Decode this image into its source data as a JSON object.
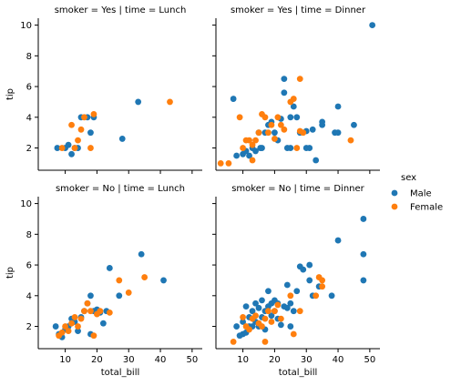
{
  "legend": {
    "title": "sex",
    "series": [
      {
        "name": "Male",
        "color": "#1f77b4"
      },
      {
        "name": "Female",
        "color": "#ff7f0e"
      }
    ]
  },
  "chart_data": [
    {
      "type": "scatter",
      "title": "smoker = Yes | time = Lunch",
      "ylabel": "tip",
      "xlim": [
        1.5,
        53.2
      ],
      "ylim": [
        0.55,
        10.45
      ],
      "xticks": [
        10,
        20,
        30,
        40,
        50
      ],
      "yticks": [
        2,
        4,
        6,
        8,
        10
      ],
      "series": [
        {
          "x": [
            7.5,
            10,
            11,
            12,
            13,
            14,
            15,
            17,
            18,
            19,
            28,
            33
          ],
          "y": [
            2,
            2,
            2.2,
            1.6,
            2,
            2,
            4,
            4,
            3,
            4,
            2.6,
            5
          ]
        },
        {
          "x": [
            9,
            12,
            13,
            14,
            15,
            16,
            18,
            19,
            43
          ],
          "y": [
            2,
            3.5,
            2,
            2.5,
            3.2,
            4,
            2,
            4.2,
            5
          ]
        }
      ]
    },
    {
      "type": "scatter",
      "title": "smoker = Yes | time = Dinner",
      "xlim": [
        1.5,
        53.2
      ],
      "ylim": [
        0.55,
        10.45
      ],
      "xticks": [
        10,
        20,
        30,
        40,
        50
      ],
      "yticks": [
        2,
        4,
        6,
        8,
        10
      ],
      "series": [
        {
          "x": [
            7,
            8,
            10,
            11,
            12,
            13,
            14,
            15,
            15.5,
            16,
            17,
            18,
            19,
            20,
            21,
            22,
            23,
            23,
            24,
            25,
            25,
            26,
            27,
            28,
            30,
            30,
            31,
            32,
            33,
            35,
            35,
            39,
            40,
            40,
            45,
            50.8
          ],
          "y": [
            5.2,
            1.5,
            1.6,
            1.8,
            1.5,
            2,
            1.8,
            3,
            2,
            2,
            3,
            3.5,
            3.7,
            3,
            2.5,
            3.9,
            6.5,
            5.6,
            2,
            4,
            2,
            4.7,
            4,
            3,
            2,
            3.1,
            2,
            3.2,
            1.2,
            3.5,
            3.7,
            3,
            4.7,
            3,
            3.5,
            10
          ]
        },
        {
          "x": [
            3,
            5.5,
            9,
            10,
            11,
            12,
            13,
            13,
            14,
            15,
            16,
            17,
            18,
            19,
            20,
            21,
            22,
            23,
            25,
            26,
            27,
            28,
            28,
            29,
            44
          ],
          "y": [
            1,
            1,
            4,
            2,
            2.5,
            2.5,
            1.2,
            2.2,
            2.5,
            3,
            4.2,
            4,
            3,
            3.5,
            2.6,
            4,
            3.5,
            3.2,
            5,
            5.2,
            2,
            6.5,
            3.1,
            3,
            2.5
          ]
        }
      ]
    },
    {
      "type": "scatter",
      "title": "smoker = No | time = Lunch",
      "ylabel": "tip",
      "xlabel": "total_bill",
      "xlim": [
        1.5,
        53.2
      ],
      "ylim": [
        0.55,
        10.45
      ],
      "xticks": [
        10,
        20,
        30,
        40,
        50
      ],
      "yticks": [
        2,
        4,
        6,
        8,
        10
      ],
      "series": [
        {
          "x": [
            7,
            8,
            9,
            10,
            11,
            12,
            13,
            14,
            15,
            16,
            17,
            18,
            18,
            19,
            20,
            21,
            22,
            23,
            24,
            27,
            34,
            41
          ],
          "y": [
            2,
            1.5,
            1.3,
            1.8,
            2,
            2.5,
            2.3,
            1.7,
            2.6,
            3,
            3.5,
            4,
            1.5,
            3,
            3.1,
            2.9,
            2.2,
            3,
            5.8,
            4,
            6.7,
            5
          ]
        },
        {
          "x": [
            8,
            9,
            10,
            11,
            12,
            13,
            14,
            15,
            16,
            17,
            18,
            19,
            20,
            21,
            24,
            27,
            30,
            35
          ],
          "y": [
            1.4,
            1.6,
            2,
            1.7,
            2.2,
            2.6,
            2,
            2.5,
            3,
            3.5,
            3,
            1.4,
            2.8,
            3,
            2.9,
            5,
            4.2,
            5.2
          ]
        }
      ]
    },
    {
      "type": "scatter",
      "title": "smoker = No | time = Dinner",
      "xlabel": "total_bill",
      "xlim": [
        1.5,
        53.2
      ],
      "ylim": [
        0.55,
        10.45
      ],
      "xticks": [
        10,
        20,
        30,
        40,
        50
      ],
      "yticks": [
        2,
        4,
        6,
        8,
        10
      ],
      "series": [
        {
          "x": [
            8,
            9,
            10,
            10,
            11,
            11,
            12,
            12,
            13,
            13,
            14,
            14,
            15,
            15,
            16,
            16,
            17,
            17,
            18,
            18,
            19,
            19,
            20,
            20,
            21,
            21,
            22,
            23,
            24,
            24,
            25,
            25,
            26,
            27,
            28,
            29,
            31,
            31,
            32,
            34,
            38,
            40,
            48,
            48,
            48
          ],
          "y": [
            2,
            1.4,
            1.5,
            2.3,
            3.3,
            1.6,
            2,
            2.6,
            2,
            3,
            2.3,
            3.5,
            2,
            3.2,
            3.7,
            2.6,
            3,
            1.8,
            3.3,
            4.3,
            2.7,
            3.5,
            3,
            3.7,
            2.5,
            3.5,
            2.1,
            3.3,
            3.2,
            4.7,
            3.5,
            2,
            3,
            4.3,
            5.9,
            5.7,
            6,
            5,
            4,
            4.6,
            4,
            7.6,
            9,
            6.7,
            5
          ]
        },
        {
          "x": [
            7,
            10,
            11,
            12,
            13,
            14,
            15,
            16,
            17,
            17,
            18,
            19,
            20,
            21,
            22,
            25,
            26,
            28,
            33,
            34,
            35,
            35
          ],
          "y": [
            1,
            2.6,
            2,
            1.8,
            2.5,
            2.7,
            2.2,
            2,
            2.5,
            1,
            3,
            2.3,
            3,
            3.4,
            2.5,
            4,
            1.5,
            3,
            4,
            5.2,
            5,
            4.6
          ]
        }
      ]
    }
  ]
}
